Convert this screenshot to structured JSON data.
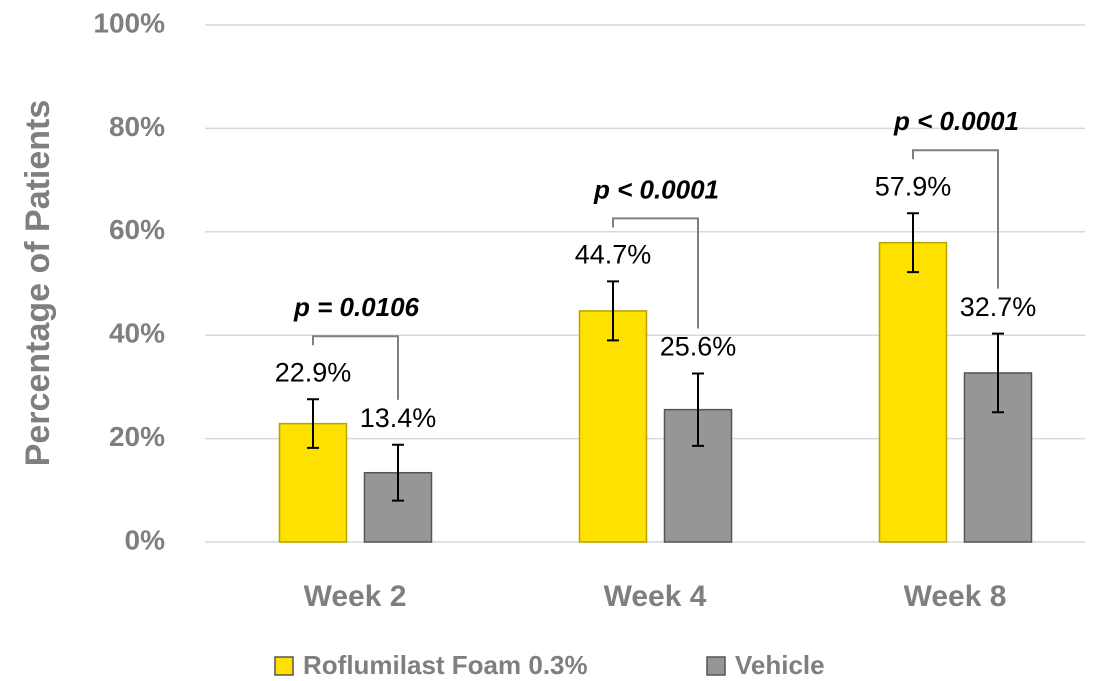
{
  "chart_data": {
    "type": "bar",
    "y_label": "Percentage of Patients",
    "categories": [
      "Week 2",
      "Week 4",
      "Week 8"
    ],
    "series": [
      {
        "name": "Roflumilast Foam 0.3%",
        "color": "#ffe100",
        "values": [
          22.9,
          44.7,
          57.9
        ],
        "value_labels": [
          "22.9%",
          "44.7%",
          "57.9%"
        ],
        "errors": [
          4.7,
          5.7,
          5.7
        ]
      },
      {
        "name": "Vehicle",
        "color": "#969696",
        "values": [
          13.4,
          25.6,
          32.7
        ],
        "value_labels": [
          "13.4%",
          "25.6%",
          "32.7%"
        ],
        "errors": [
          5.4,
          7.0,
          7.6
        ]
      }
    ],
    "annotations": [
      "p = 0.0106",
      "p < 0.0001",
      "p < 0.0001"
    ],
    "ylim": [
      0,
      100
    ],
    "yticks": [
      {
        "value": 0,
        "label": "0%"
      },
      {
        "value": 20,
        "label": "20%"
      },
      {
        "value": 40,
        "label": "40%"
      },
      {
        "value": 60,
        "label": "60%"
      },
      {
        "value": 80,
        "label": "80%"
      },
      {
        "value": 100,
        "label": "100%"
      }
    ],
    "grid": true,
    "legend": "bottom"
  }
}
